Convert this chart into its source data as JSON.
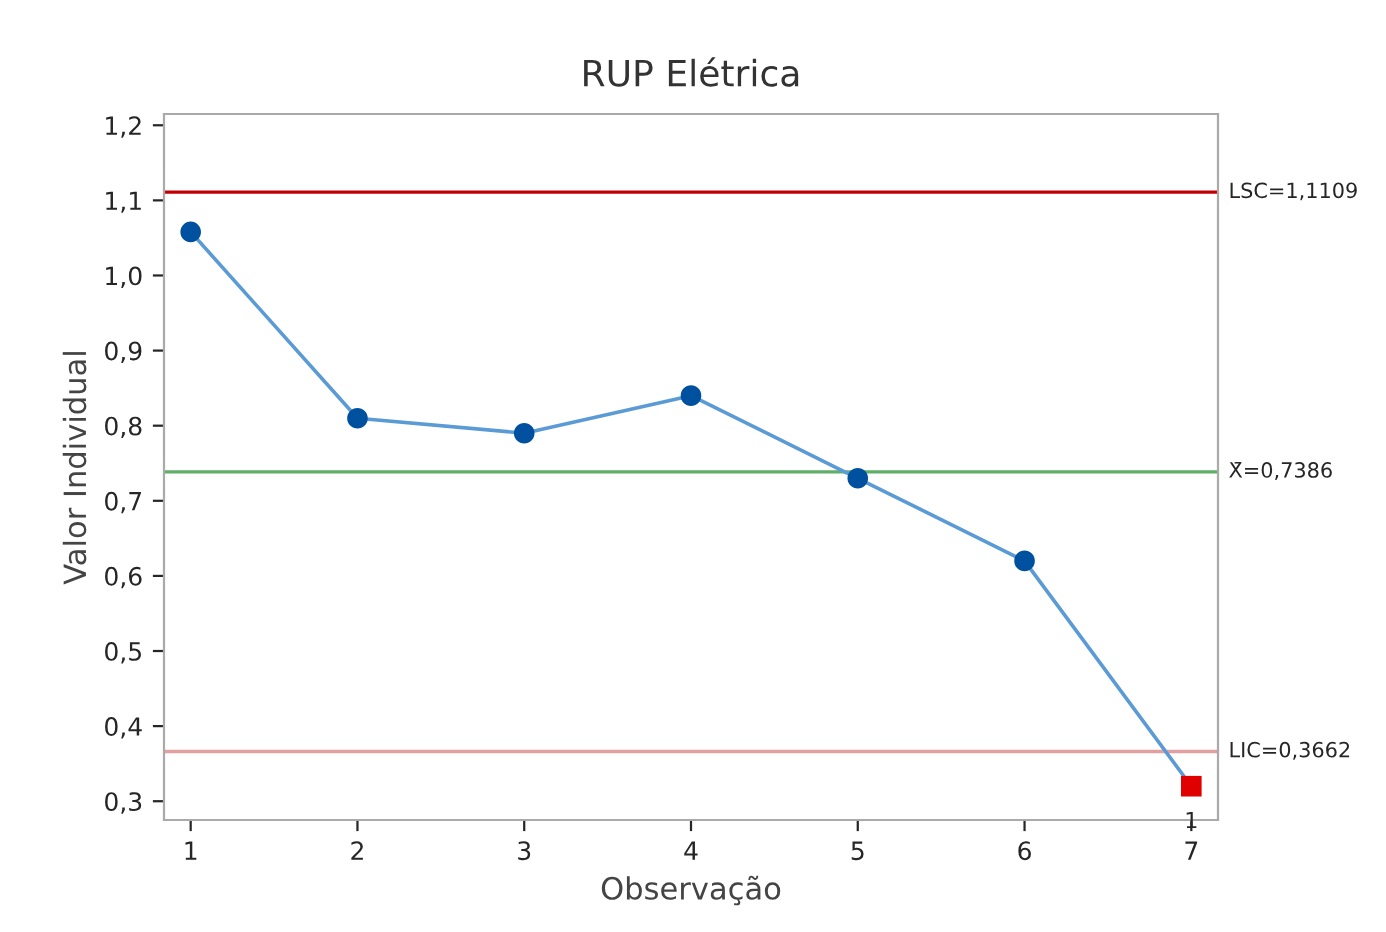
{
  "chart_data": {
    "type": "line",
    "title": "RUP Elétrica",
    "xlabel": "Observação",
    "ylabel": "Valor Individual",
    "xlim": [
      0.84,
      7.16
    ],
    "xticks": [
      1,
      2,
      3,
      4,
      5,
      6,
      7
    ],
    "ylim": [
      0.275,
      1.215
    ],
    "yticks": [
      {
        "value": 0.3,
        "label": "0,3"
      },
      {
        "value": 0.4,
        "label": "0,4"
      },
      {
        "value": 0.5,
        "label": "0,5"
      },
      {
        "value": 0.6,
        "label": "0,6"
      },
      {
        "value": 0.7,
        "label": "0,7"
      },
      {
        "value": 0.8,
        "label": "0,8"
      },
      {
        "value": 0.9,
        "label": "0,9"
      },
      {
        "value": 1.0,
        "label": "1,0"
      },
      {
        "value": 1.1,
        "label": "1,1"
      },
      {
        "value": 1.2,
        "label": "1,2"
      }
    ],
    "grid": false,
    "series": [
      {
        "color": "#5b9bd5",
        "marker": "none",
        "x": [
          1,
          2,
          3,
          4,
          5,
          6,
          7
        ],
        "values": [
          1.058,
          0.81,
          0.79,
          0.84,
          0.73,
          0.62,
          0.32
        ]
      },
      {
        "type": "scatter",
        "color": "#0050a0",
        "marker": "circle",
        "x": [
          1,
          2,
          3,
          4,
          5,
          6
        ],
        "values": [
          1.058,
          0.81,
          0.79,
          0.84,
          0.73,
          0.62
        ]
      },
      {
        "type": "scatter",
        "color": "#e00000",
        "marker": "square",
        "x": [
          7
        ],
        "values": [
          0.32
        ]
      }
    ],
    "ref_lines": [
      {
        "axis": "y",
        "value": 1.1109,
        "label": "LSC=1,1109",
        "color": "#c00000"
      },
      {
        "axis": "y",
        "value": 0.7386,
        "label": "X̄=0,7386",
        "color": "#5fae6a"
      },
      {
        "axis": "y",
        "value": 0.3662,
        "label": "LIC=0,3662",
        "color": "#e0a0a0"
      }
    ],
    "annotations": [
      {
        "text": "1",
        "x": 7,
        "y": 0.32
      }
    ]
  }
}
